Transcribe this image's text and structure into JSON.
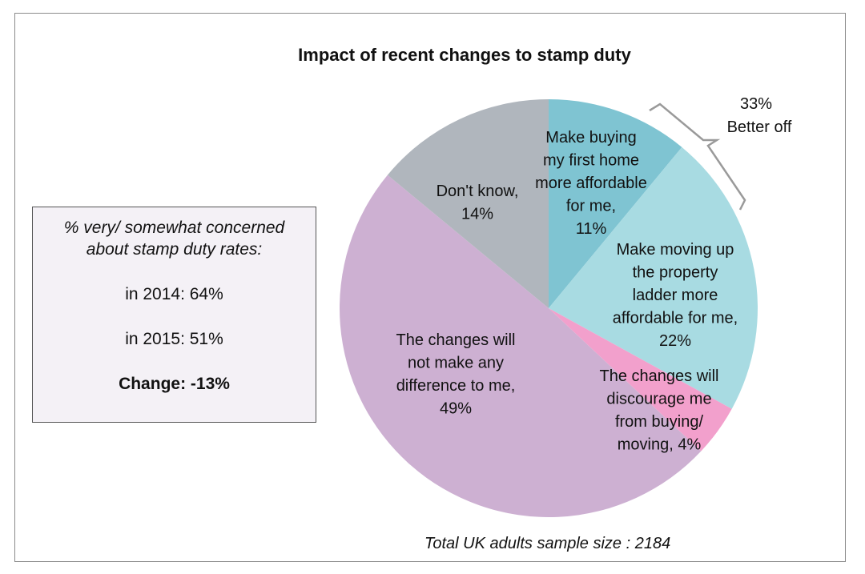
{
  "chart_data": {
    "type": "pie",
    "title": "Impact of recent changes to stamp duty",
    "slices": [
      {
        "label_lines": [
          "Make buying",
          "my first home",
          "more affordable",
          "for me,",
          "11%"
        ],
        "value": 11,
        "color": "#7fc4d2"
      },
      {
        "label_lines": [
          "Make moving up",
          "the property",
          "ladder more",
          "affordable for me,",
          "22%"
        ],
        "value": 22,
        "color": "#a8dbe2"
      },
      {
        "label_lines": [
          "The changes will",
          "discourage me",
          "from buying/",
          "moving, 4%"
        ],
        "value": 4,
        "color": "#f2a0cc"
      },
      {
        "label_lines": [
          "The changes will",
          "not make any",
          "difference to me,",
          "49%"
        ],
        "value": 49,
        "color": "#cdb0d2"
      },
      {
        "label_lines": [
          "Don't know,",
          "14%"
        ],
        "value": 14,
        "color": "#b0b6bd"
      }
    ],
    "annotation": {
      "value_text": "33%",
      "label": "Better off"
    },
    "footnote": "Total UK adults sample size : 2184"
  },
  "callout": {
    "heading_line1": "% very/ somewhat concerned",
    "heading_line2": "about stamp duty rates:",
    "row_2014": "in 2014:  64%",
    "row_2015": "in 2015:  51%",
    "change": "Change: -13%"
  }
}
